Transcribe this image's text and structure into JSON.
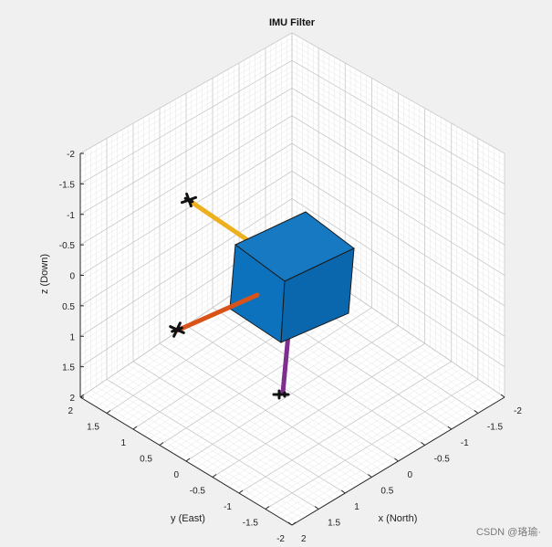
{
  "window": {
    "title": "IMU Filter",
    "watermark": "CSDN @珞瑜·"
  },
  "axes": {
    "z_label": "z (Down)",
    "y_label": "y (East)",
    "x_label": "x (North)",
    "z_ticks": [
      "-2",
      "-1.5",
      "-1",
      "-0.5",
      "0",
      "0.5",
      "1",
      "1.5",
      "2"
    ],
    "y_ticks": [
      "2",
      "1.5",
      "1",
      "0.5",
      "0",
      "-0.5",
      "-1",
      "-1.5",
      "-2"
    ],
    "x_ticks": [
      "-2",
      "-1.5",
      "-1",
      "-0.5",
      "0",
      "0.5",
      "1",
      "1.5",
      "2"
    ],
    "grid": true
  },
  "colors": {
    "background": "#f0f0f0",
    "axes_background": "#ffffff",
    "grid_minor": "#e6e6e6",
    "grid_major": "#c8c8c8",
    "cube_front": "#0d72bd",
    "cube_top": "#1779c2",
    "cube_side": "#0a67ad",
    "axis_yellow": "#edb120",
    "axis_orange": "#d95319",
    "axis_purple": "#7e2f8e",
    "airplane": "#111111"
  },
  "scene": {
    "object": "cube",
    "orientation_axes": [
      {
        "name": "yellow-axis",
        "color": "#edb120"
      },
      {
        "name": "orange-axis",
        "color": "#d95319"
      },
      {
        "name": "purple-axis",
        "color": "#7e2f8e"
      }
    ],
    "markers": [
      "airplane-icon",
      "airplane-icon",
      "airplane-icon"
    ]
  }
}
